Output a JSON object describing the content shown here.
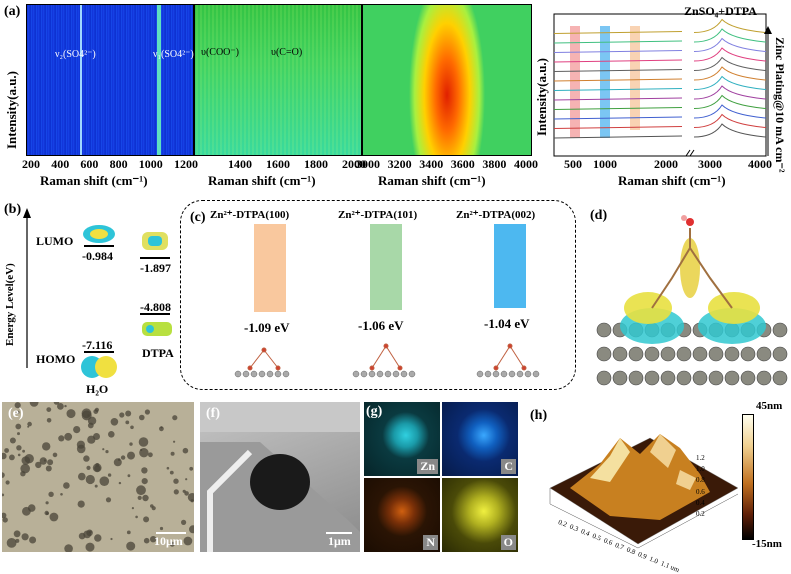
{
  "panel_a": {
    "label": "(a)",
    "ylabel": "Intensity(a.u.)",
    "heatmap1": {
      "ticks": [
        "200",
        "400",
        "600",
        "800",
        "1000",
        "1200"
      ],
      "xlabel": "Raman shift (cm⁻¹)",
      "ann1": "ν₂(SO4²⁻)",
      "ann2": "ν₁(SO4²⁻)"
    },
    "heatmap2": {
      "ticks": [
        "1400",
        "1600",
        "1800",
        "2000"
      ],
      "xlabel": "Raman shift (cm⁻¹)",
      "ann1": "υ(COO⁻)",
      "ann2": "υ(C=O)"
    },
    "heatmap3": {
      "ticks": [
        "3000",
        "3200",
        "3400",
        "3600",
        "3800",
        "4000"
      ],
      "xlabel": "Raman shift (cm⁻¹)"
    },
    "spectra": {
      "title": "ZnSO₄+DTPA",
      "ticks": [
        "500",
        "1000",
        "2000",
        "3000",
        "4000"
      ],
      "xlabel": "Raman shift (cm⁻¹)",
      "ylabel": "Intensity(a.u.)",
      "side_label": "Zinc Plating@10 mA cm⁻²"
    }
  },
  "panel_b": {
    "label": "(b)",
    "ylabel": "Energy Level(eV)",
    "lumo": "LUMO",
    "homo": "HOMO",
    "h2o_lumo": "-0.984",
    "h2o_homo": "-7.116",
    "dtpa_lumo": "-1.897",
    "dtpa_homo": "-4.808",
    "h2o": "H₂O",
    "dtpa": "DTPA"
  },
  "panel_c": {
    "label": "(c)",
    "bars": [
      {
        "name": "Zn²⁺-DTPA(100)",
        "value": "-1.09 eV",
        "color": "#f9c89e"
      },
      {
        "name": "Zn²⁺-DTPA(101)",
        "value": "-1.06 eV",
        "color": "#a8d8a8"
      },
      {
        "name": "Zn²⁺-DTPA(002)",
        "value": "-1.04 eV",
        "color": "#4db8f0"
      }
    ]
  },
  "panel_d": {
    "label": "(d)"
  },
  "panel_e": {
    "label": "(e)",
    "scale": "10μm"
  },
  "panel_f": {
    "label": "(f)",
    "scale": "1μm"
  },
  "panel_g": {
    "label": "(g)",
    "zn": "Zn",
    "c": "C",
    "n": "N",
    "o": "O"
  },
  "panel_h": {
    "label": "(h)",
    "cb_max": "45nm",
    "cb_min": "-15nm",
    "ticks_x": [
      "0.2",
      "0.3",
      "0.4",
      "0.5",
      "0.6",
      "0.7",
      "0.8",
      "0.9",
      "1.0",
      "1.1 um"
    ],
    "ticks_y": [
      "0.2",
      "0.4",
      "0.6",
      "0.8",
      "1.0",
      "1.2"
    ]
  }
}
